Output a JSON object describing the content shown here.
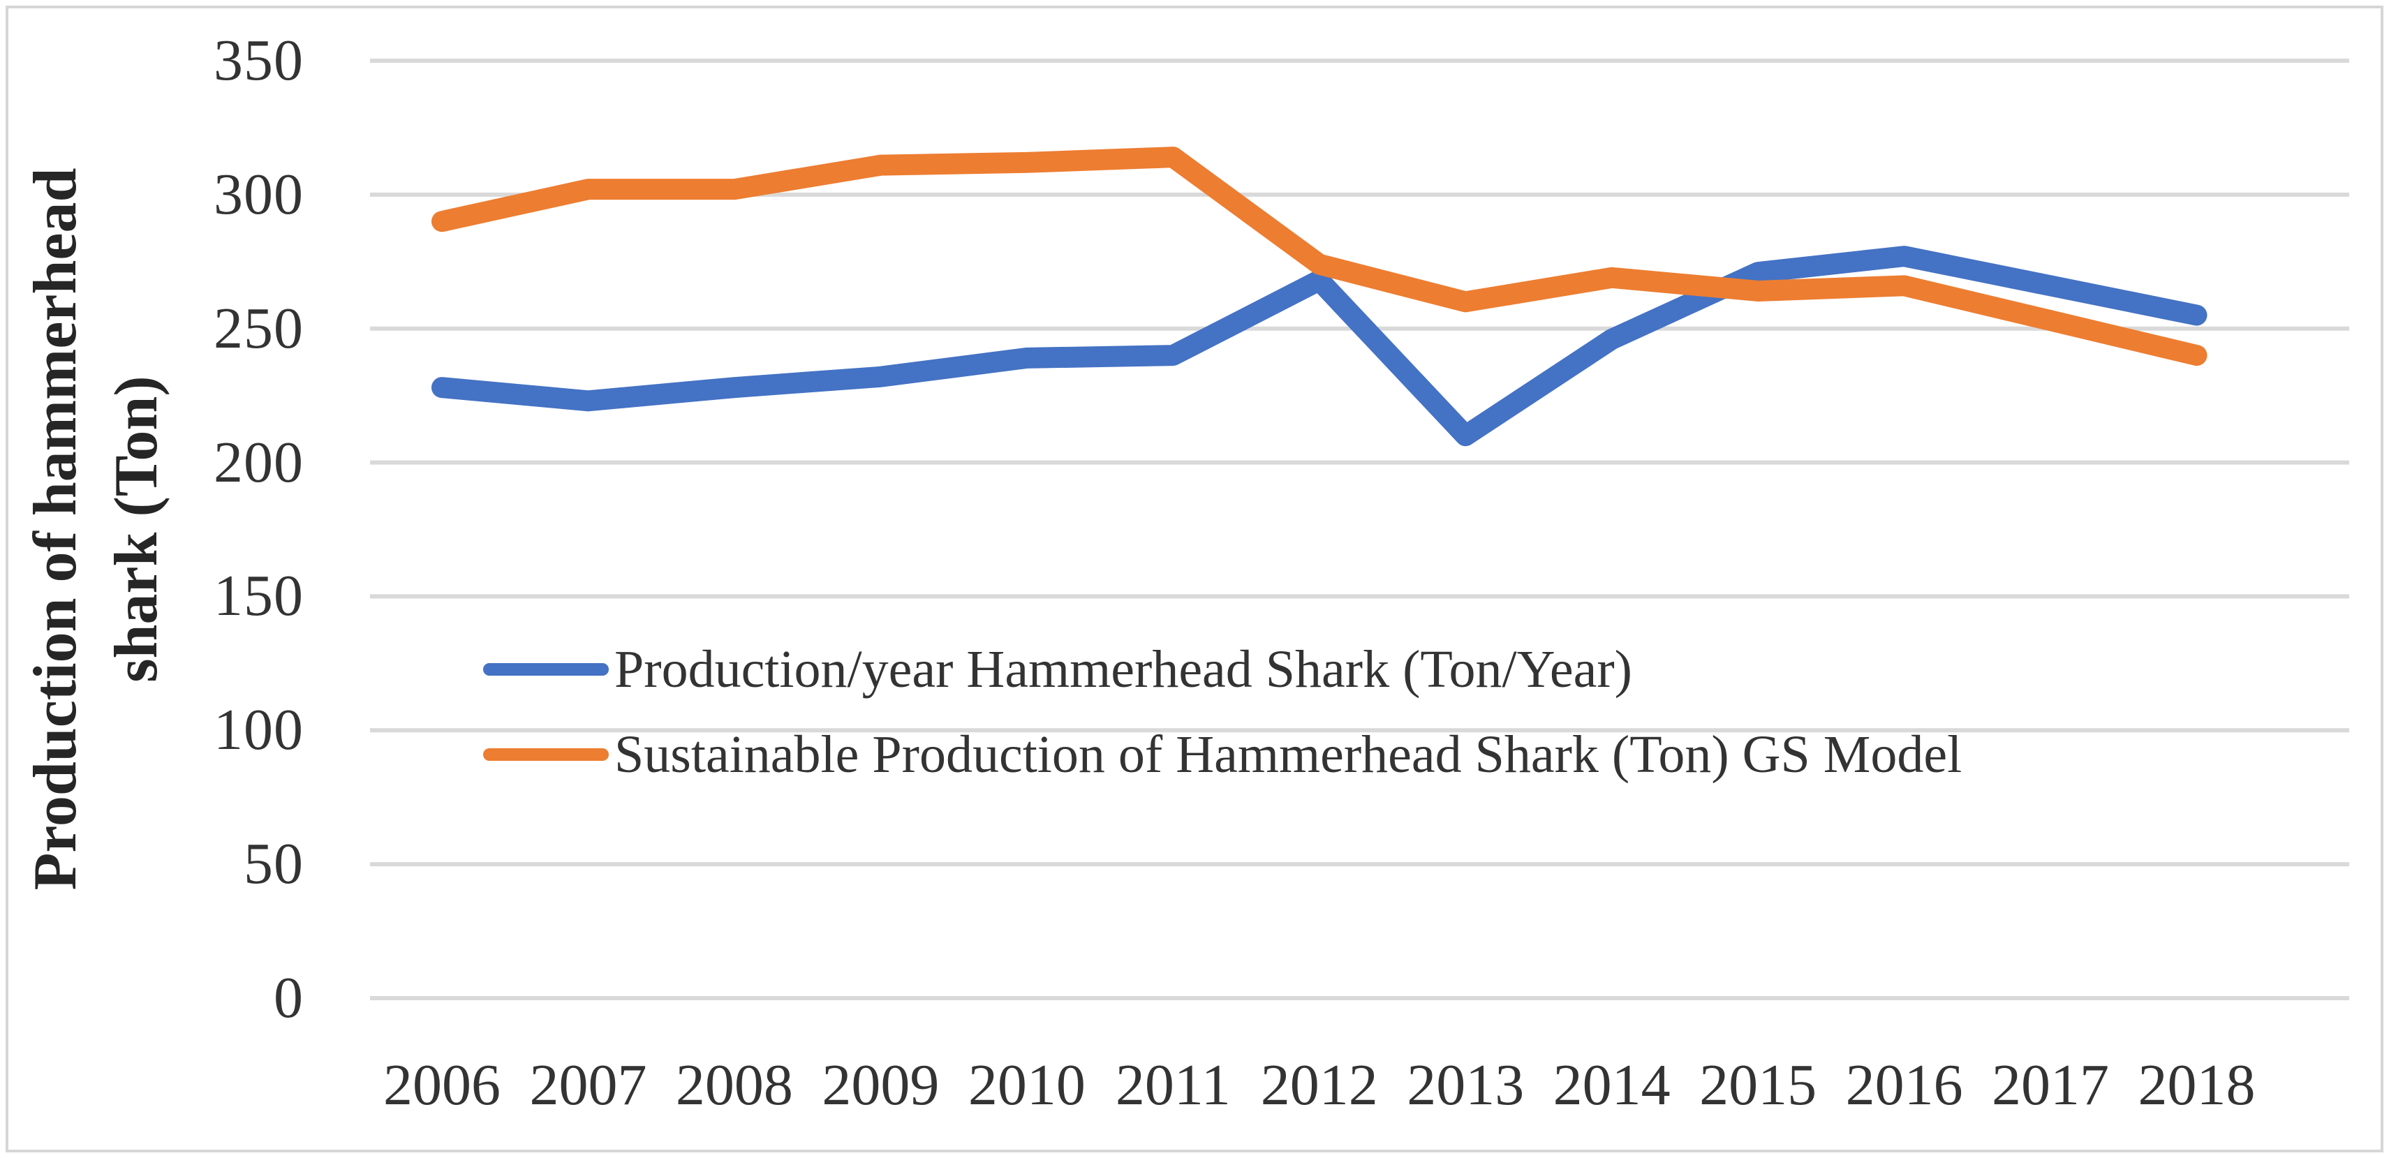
{
  "figure": {
    "y_axis_title_line1": "Production of hammerhead",
    "y_axis_title_line2": "shark (Ton)"
  },
  "chart_data": {
    "type": "line",
    "title": "",
    "xlabel": "",
    "ylabel": "Production of hammerhead shark (Ton)",
    "x": [
      2006,
      2007,
      2008,
      2009,
      2010,
      2011,
      2012,
      2013,
      2014,
      2015,
      2016,
      2017,
      2018
    ],
    "series": [
      {
        "name": "Production/year Hammerhead Shark (Ton/Year)",
        "color": "#4472C4",
        "values": [
          228,
          223,
          228,
          232,
          239,
          240,
          268,
          210,
          246,
          271,
          277,
          266,
          255
        ]
      },
      {
        "name": "Sustainable Production of Hammerhead Shark (Ton) GS Model",
        "color": "#ED7D31",
        "values": [
          290,
          302,
          302,
          311,
          312,
          314,
          274,
          260,
          269,
          264,
          266,
          253,
          240
        ]
      }
    ],
    "y_ticks": [
      350,
      300,
      250,
      200,
      150,
      100,
      50,
      0
    ],
    "ylim": [
      0,
      350
    ],
    "grid": true,
    "gridline_color": "#D9D9D9",
    "frame_color": "#D6D6D6",
    "legend_position": "inside-left-middle"
  }
}
